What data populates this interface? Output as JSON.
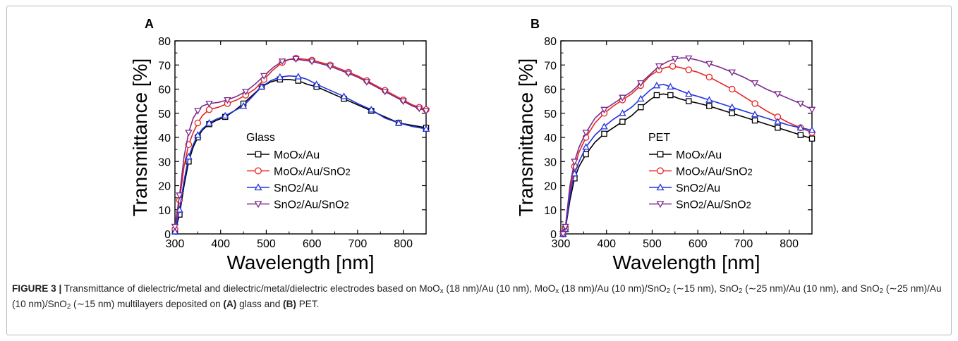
{
  "caption": {
    "label": "FIGURE 3 |",
    "parts": [
      {
        "t": " Transmittance of dielectric/metal and dielectric/metal/dielectric electrodes based on MoO"
      },
      {
        "t": "x",
        "sub": true
      },
      {
        "t": " (18 nm)/Au (10 nm), MoO"
      },
      {
        "t": "x",
        "sub": true
      },
      {
        "t": " (18 nm)/Au (10 nm)/SnO"
      },
      {
        "t": "2",
        "sub": true
      },
      {
        "t": " (∼15 nm), SnO"
      },
      {
        "t": "2",
        "sub": true
      },
      {
        "t": " (∼25 nm)/Au (10 nm), and SnO"
      },
      {
        "t": "2",
        "sub": true
      },
      {
        "t": " (∼25 nm)/Au (10 nm)/SnO"
      },
      {
        "t": "2",
        "sub": true
      },
      {
        "t": " (∼15 nm) multilayers deposited on "
      },
      {
        "t": "(A)",
        "bold": true
      },
      {
        "t": " glass and "
      },
      {
        "t": "(B)",
        "bold": true
      },
      {
        "t": " PET."
      }
    ]
  },
  "colors": {
    "MoOx/Au": "#000000",
    "MoOx/Au/SnO2": "#e8231f",
    "SnO2/Au": "#2233dd",
    "SnO2/Au/SnO2": "#7a2a8a"
  },
  "chart_data": [
    {
      "type": "line",
      "panel_label": "A",
      "legend_title": "Glass",
      "xlabel": "Wavelength [nm]",
      "ylabel": "Transmittance [%]",
      "xlim": [
        300,
        850
      ],
      "ylim": [
        0,
        80
      ],
      "xticks": [
        300,
        400,
        500,
        600,
        700,
        800
      ],
      "yticks": [
        0,
        10,
        20,
        30,
        40,
        50,
        60,
        70,
        80
      ],
      "grid": false,
      "legend_position": "lower-middle",
      "series": [
        {
          "name": "MoOx/Au",
          "marker": "square",
          "x": [
            300,
            310,
            320,
            330,
            340,
            350,
            360,
            375,
            390,
            410,
            430,
            450,
            470,
            490,
            510,
            530,
            550,
            570,
            590,
            610,
            640,
            670,
            700,
            730,
            760,
            790,
            820,
            850
          ],
          "y": [
            1,
            8,
            20,
            30,
            36,
            40,
            43,
            45.5,
            47,
            48.5,
            51,
            54,
            57.5,
            61,
            63,
            64,
            64,
            63.5,
            62,
            61,
            58.5,
            56,
            53.5,
            51,
            48.5,
            46,
            45,
            44
          ]
        },
        {
          "name": "MoOx/Au/SnO2",
          "marker": "circle",
          "x": [
            300,
            310,
            320,
            330,
            340,
            350,
            360,
            375,
            395,
            415,
            435,
            455,
            475,
            495,
            515,
            535,
            550,
            565,
            580,
            600,
            620,
            640,
            660,
            680,
            700,
            720,
            740,
            760,
            780,
            800,
            820,
            835,
            850
          ],
          "y": [
            2,
            14,
            28,
            37,
            42,
            46,
            49,
            51.5,
            52.5,
            54,
            55.5,
            57.5,
            60,
            64,
            68,
            71,
            72.3,
            72.8,
            72.5,
            72,
            71,
            70,
            68.5,
            67,
            65.5,
            63.5,
            61.5,
            59.5,
            57.5,
            55.5,
            53.5,
            52.5,
            51.5
          ]
        },
        {
          "name": "SnO2/Au",
          "marker": "triangle-up",
          "x": [
            300,
            310,
            320,
            330,
            340,
            350,
            360,
            375,
            390,
            410,
            430,
            450,
            470,
            490,
            510,
            530,
            550,
            570,
            590,
            610,
            640,
            670,
            700,
            730,
            760,
            790,
            820,
            850
          ],
          "y": [
            1,
            10,
            22,
            32,
            37,
            41,
            43.5,
            46,
            47.5,
            49,
            51,
            53,
            57,
            61,
            63.5,
            65,
            65.5,
            65.2,
            64,
            62,
            59.5,
            57,
            54,
            51.5,
            48,
            46,
            44.5,
            43.5
          ]
        },
        {
          "name": "SnO2/Au/SnO2",
          "marker": "triangle-down",
          "x": [
            300,
            310,
            320,
            330,
            340,
            350,
            360,
            375,
            395,
            415,
            435,
            455,
            475,
            495,
            515,
            535,
            550,
            565,
            580,
            600,
            620,
            640,
            660,
            680,
            700,
            720,
            740,
            760,
            780,
            800,
            820,
            835,
            850
          ],
          "y": [
            3,
            16,
            32,
            42,
            48,
            51,
            53,
            54,
            54.5,
            55.5,
            57,
            59,
            62,
            65.5,
            69,
            71.5,
            72.3,
            72.5,
            72,
            71.5,
            70.5,
            69.5,
            68,
            66.5,
            65,
            63,
            61,
            59,
            57,
            55,
            53,
            52,
            51
          ]
        }
      ]
    },
    {
      "type": "line",
      "panel_label": "B",
      "legend_title": "PET",
      "xlabel": "Wavelength [nm]",
      "ylabel": "Transmittance [%]",
      "xlim": [
        300,
        850
      ],
      "ylim": [
        0,
        80
      ],
      "xticks": [
        300,
        400,
        500,
        600,
        700,
        800
      ],
      "yticks": [
        0,
        10,
        20,
        30,
        40,
        50,
        60,
        70,
        80
      ],
      "grid": false,
      "legend_position": "lower-middle",
      "series": [
        {
          "name": "MoOx/Au",
          "marker": "square",
          "x": [
            305,
            310,
            320,
            330,
            340,
            355,
            375,
            395,
            415,
            435,
            455,
            475,
            495,
            510,
            525,
            540,
            560,
            580,
            600,
            625,
            650,
            675,
            700,
            725,
            750,
            775,
            800,
            825,
            850
          ],
          "y": [
            0,
            2,
            14,
            23,
            28,
            33,
            38,
            41.5,
            44,
            46.5,
            49,
            52.5,
            55.5,
            57.5,
            58,
            57.5,
            56,
            55,
            54.2,
            53,
            51.5,
            50,
            48.5,
            47,
            45.5,
            44,
            42.5,
            41,
            39.5
          ]
        },
        {
          "name": "MoOx/Au/SnO2",
          "marker": "circle",
          "x": [
            305,
            310,
            320,
            330,
            340,
            355,
            375,
            395,
            415,
            435,
            455,
            475,
            495,
            515,
            530,
            545,
            560,
            580,
            600,
            625,
            650,
            675,
            700,
            725,
            750,
            775,
            800,
            825,
            850
          ],
          "y": [
            0,
            2,
            18,
            28,
            34,
            40,
            46,
            50,
            53,
            55.5,
            58,
            61.5,
            65.5,
            68,
            69,
            69.5,
            69,
            68,
            67,
            65,
            62.5,
            60,
            57,
            54,
            51,
            48.5,
            46,
            44,
            42
          ]
        },
        {
          "name": "SnO2/Au",
          "marker": "triangle-up",
          "x": [
            305,
            310,
            320,
            330,
            340,
            355,
            375,
            395,
            415,
            435,
            455,
            475,
            495,
            510,
            525,
            540,
            560,
            580,
            600,
            625,
            650,
            675,
            700,
            725,
            750,
            775,
            800,
            825,
            850
          ],
          "y": [
            0,
            2,
            16,
            25,
            30,
            36,
            41,
            44.5,
            47.5,
            50,
            52.5,
            56,
            59.5,
            61.5,
            62,
            61,
            59.5,
            58,
            57,
            55.5,
            54,
            52.5,
            51,
            49.5,
            48,
            46.5,
            45,
            44,
            43
          ]
        },
        {
          "name": "SnO2/Au/SnO2",
          "marker": "triangle-down",
          "x": [
            305,
            310,
            320,
            330,
            340,
            355,
            375,
            395,
            415,
            435,
            455,
            475,
            495,
            515,
            535,
            550,
            565,
            580,
            600,
            625,
            650,
            675,
            700,
            725,
            750,
            775,
            800,
            825,
            850
          ],
          "y": [
            0,
            3,
            20,
            30,
            36,
            42,
            48,
            51.5,
            54,
            56.5,
            59,
            62.5,
            66,
            69.5,
            71.5,
            72.5,
            73,
            72.8,
            72,
            70.5,
            69,
            67,
            65,
            62.5,
            60,
            58,
            56,
            54,
            51.5
          ]
        }
      ]
    }
  ]
}
